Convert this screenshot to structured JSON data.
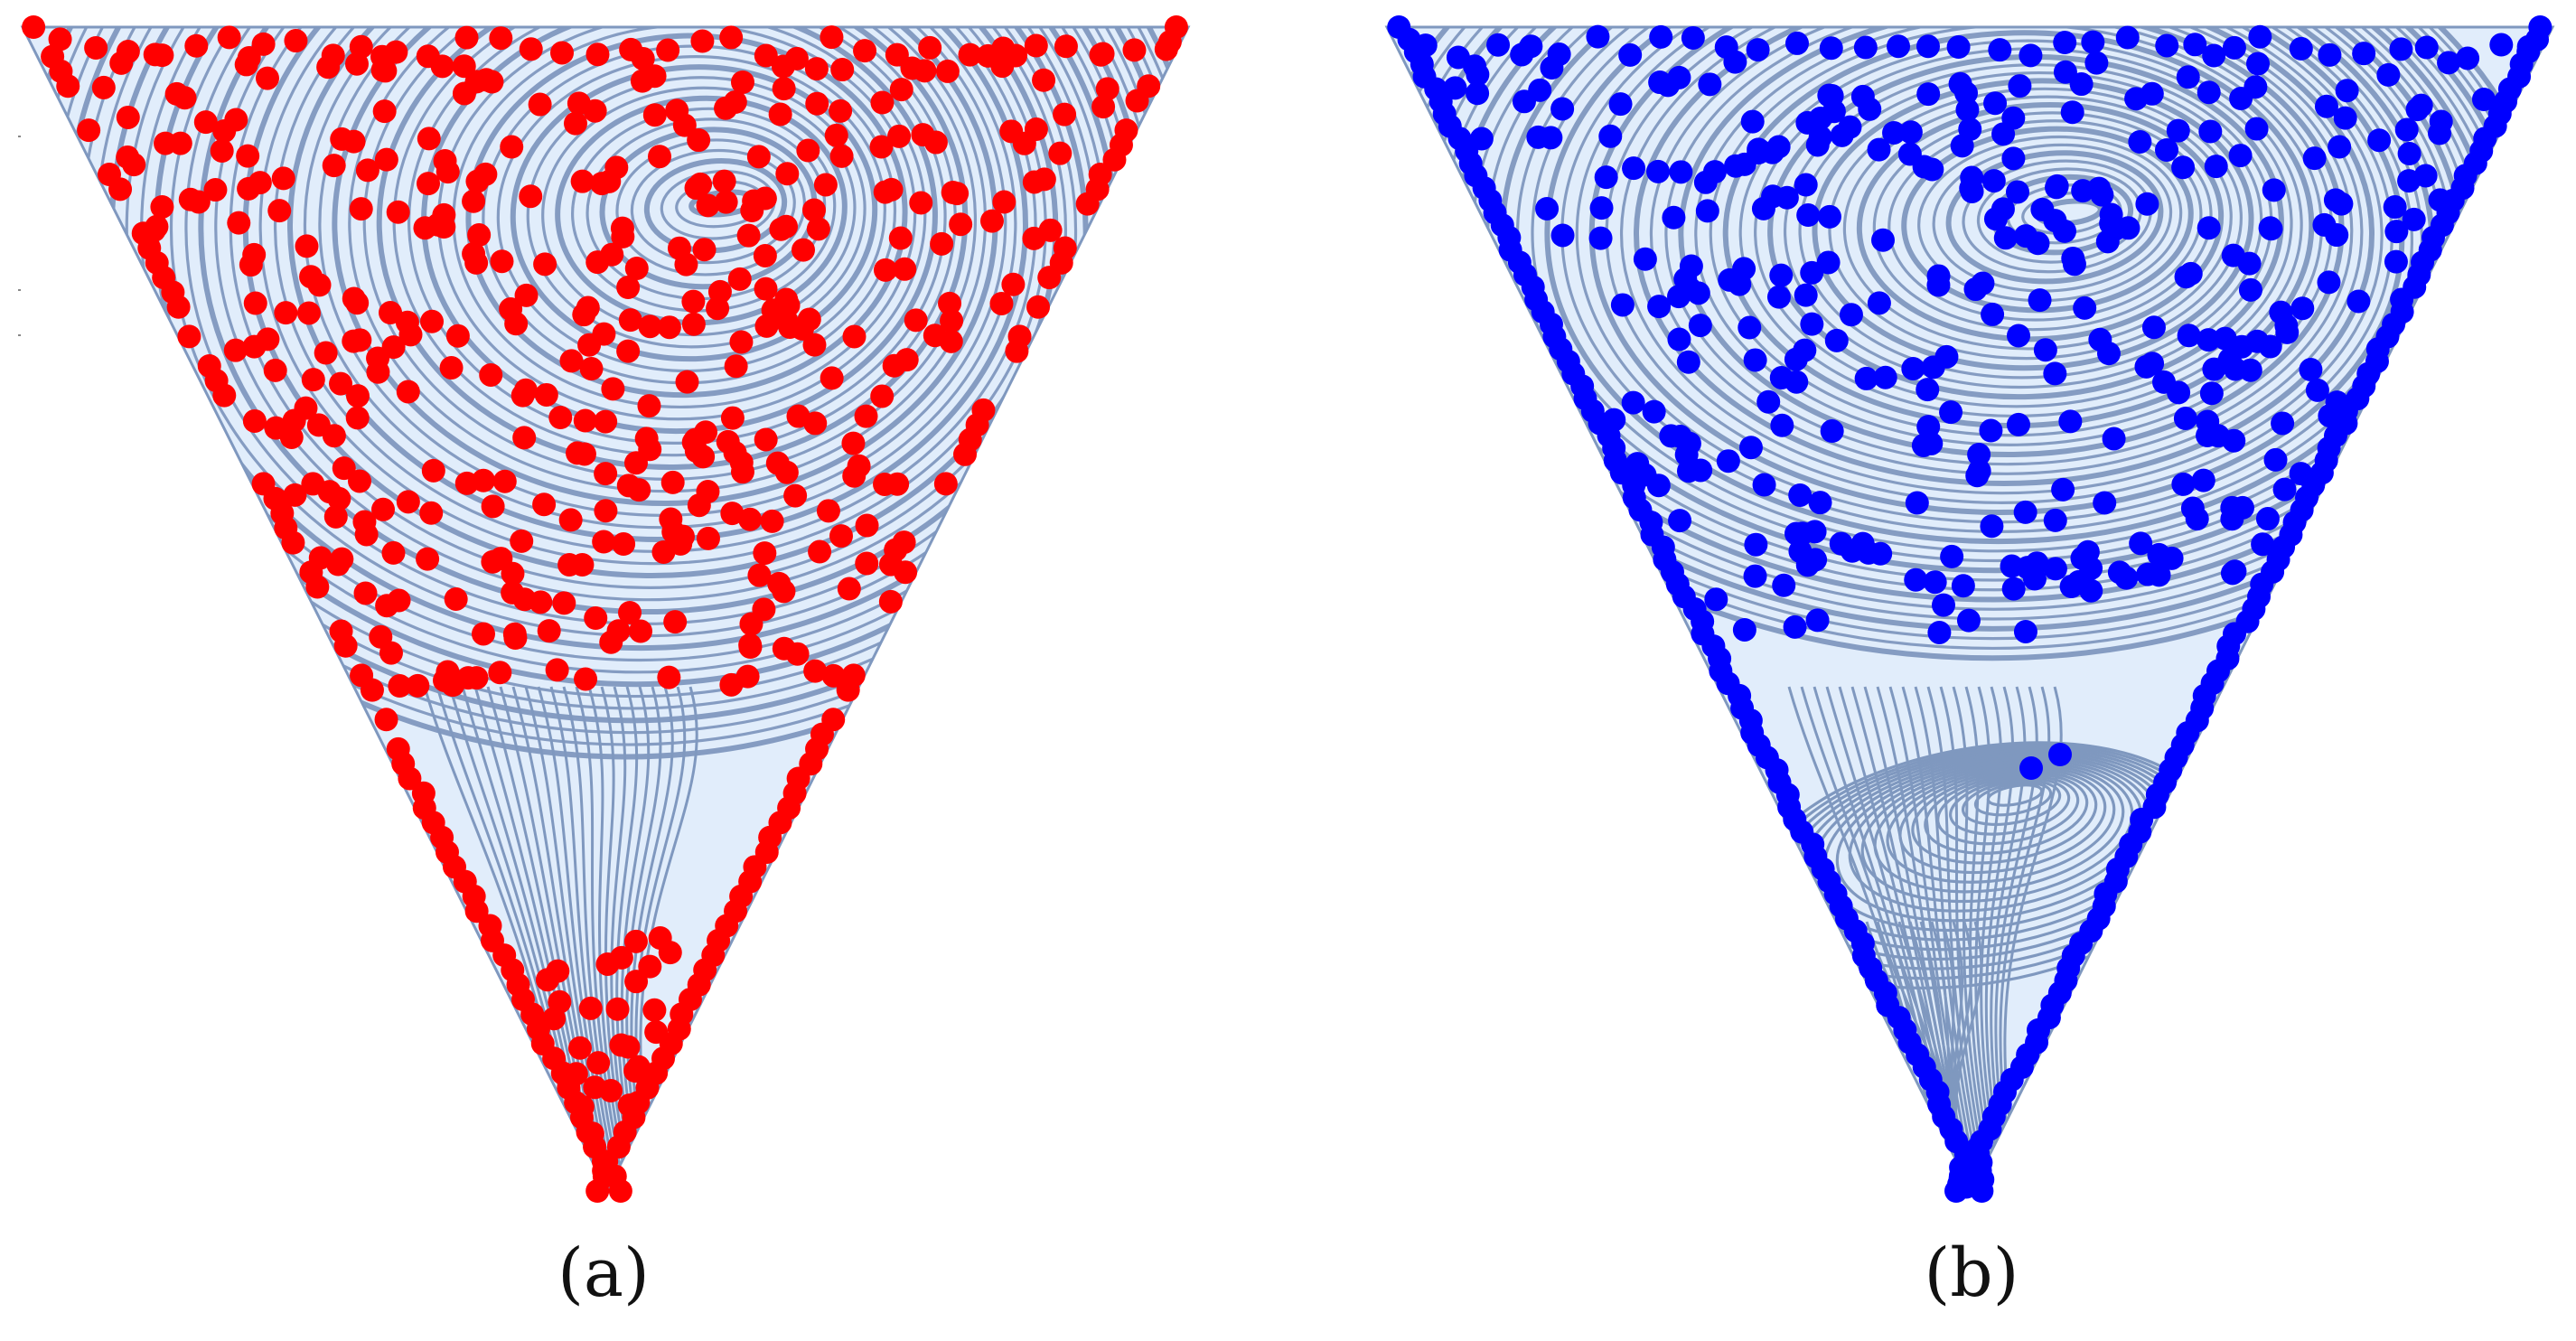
{
  "colors": {
    "fluid_fill": "#e1edfb",
    "streamline": "#7f98bf",
    "particles_a": "#ff0000",
    "particles_b": "#0000ff"
  },
  "panels": [
    {
      "id": "a",
      "caption": "(a)",
      "particle_color_key": "particles_a",
      "second_vortex": false
    },
    {
      "id": "b",
      "caption": "(b)",
      "particle_color_key": "particles_b",
      "second_vortex": true
    }
  ]
}
